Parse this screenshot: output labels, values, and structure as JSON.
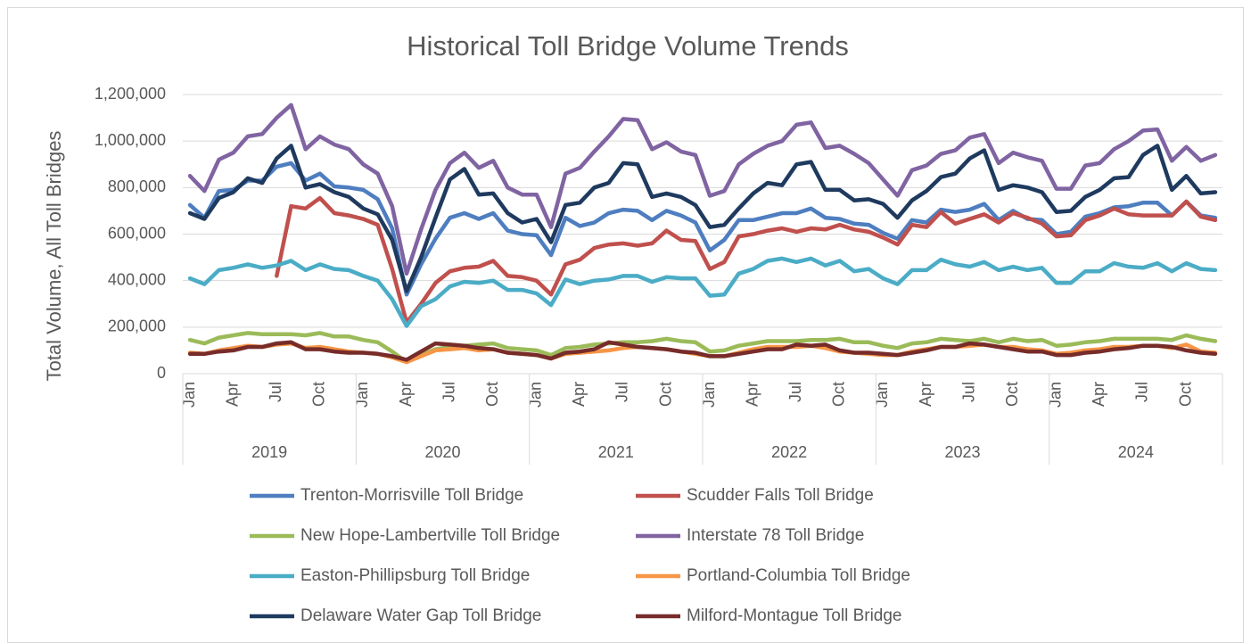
{
  "chart_data": {
    "type": "line",
    "title": "Historical Toll Bridge Volume Trends",
    "y_label": "Total Volume, All Toll Bridges",
    "categories": [
      "Jan",
      null,
      null,
      "Apr",
      null,
      null,
      "Jul",
      null,
      null,
      "Oct",
      null,
      null,
      "Jan",
      null,
      null,
      "Apr",
      null,
      null,
      "Jul",
      null,
      null,
      "Oct",
      null,
      null,
      "Jan",
      null,
      null,
      "Apr",
      null,
      null,
      "Jul",
      null,
      null,
      "Oct",
      null,
      null,
      "Jan",
      null,
      null,
      "Apr",
      null,
      null,
      "Jul",
      null,
      null,
      "Oct",
      null,
      null,
      "Jan",
      null,
      null,
      "Apr",
      null,
      null,
      "Jul",
      null,
      null,
      "Oct",
      null,
      null,
      "Jan",
      null,
      null,
      "Apr",
      null,
      null,
      "Jul",
      null,
      null,
      "Oct",
      null,
      null
    ],
    "years": [
      "2019",
      "2020",
      "2021",
      "2022",
      "2023",
      "2024"
    ],
    "ylim": [
      0,
      1200000
    ],
    "yticks": [
      0,
      {
        "value": 200000,
        "label": "200,000"
      },
      {
        "value": 400000,
        "label": "400,000"
      },
      {
        "value": 600000,
        "label": "600,000"
      },
      {
        "value": 800000,
        "label": "800,000"
      },
      {
        "value": 1000000,
        "label": "1,000,000"
      },
      {
        "value": 1200000,
        "label": "1,200,000"
      }
    ],
    "grid": true,
    "legend": "bottom",
    "series": [
      {
        "name": "Trenton-Morrisville Toll Bridge",
        "color": "#4e7ec0",
        "values": [
          725000,
          670000,
          785000,
          790000,
          830000,
          830000,
          890000,
          905000,
          830000,
          860000,
          805000,
          800000,
          790000,
          750000,
          625000,
          340000,
          470000,
          580000,
          670000,
          690000,
          665000,
          690000,
          615000,
          600000,
          595000,
          510000,
          670000,
          635000,
          650000,
          690000,
          705000,
          700000,
          660000,
          700000,
          680000,
          650000,
          530000,
          575000,
          660000,
          660000,
          675000,
          690000,
          690000,
          710000,
          670000,
          665000,
          645000,
          640000,
          605000,
          580000,
          660000,
          650000,
          705000,
          695000,
          705000,
          730000,
          660000,
          700000,
          665000,
          660000,
          600000,
          610000,
          675000,
          690000,
          715000,
          720000,
          735000,
          735000,
          680000,
          740000,
          680000,
          670000
        ]
      },
      {
        "name": "Scudder Falls Toll Bridge",
        "color": "#c0504d",
        "values": [
          null,
          null,
          null,
          null,
          null,
          null,
          420000,
          720000,
          710000,
          755000,
          690000,
          680000,
          665000,
          640000,
          450000,
          220000,
          300000,
          390000,
          440000,
          455000,
          460000,
          485000,
          420000,
          415000,
          400000,
          340000,
          470000,
          490000,
          540000,
          555000,
          560000,
          550000,
          560000,
          615000,
          575000,
          570000,
          450000,
          480000,
          590000,
          600000,
          615000,
          625000,
          610000,
          625000,
          620000,
          640000,
          620000,
          610000,
          585000,
          555000,
          640000,
          630000,
          695000,
          645000,
          665000,
          685000,
          650000,
          690000,
          670000,
          645000,
          590000,
          595000,
          660000,
          680000,
          710000,
          685000,
          680000,
          680000,
          680000,
          740000,
          675000,
          660000
        ]
      },
      {
        "name": "New Hope-Lambertville Toll Bridge",
        "color": "#9bbb59",
        "values": [
          145000,
          130000,
          155000,
          165000,
          175000,
          170000,
          170000,
          170000,
          165000,
          175000,
          160000,
          160000,
          145000,
          135000,
          95000,
          50000,
          80000,
          105000,
          115000,
          120000,
          125000,
          130000,
          110000,
          105000,
          100000,
          80000,
          110000,
          115000,
          125000,
          130000,
          135000,
          135000,
          140000,
          150000,
          140000,
          135000,
          95000,
          100000,
          120000,
          130000,
          140000,
          140000,
          140000,
          145000,
          145000,
          150000,
          135000,
          135000,
          120000,
          110000,
          130000,
          135000,
          150000,
          145000,
          140000,
          150000,
          135000,
          150000,
          140000,
          145000,
          120000,
          125000,
          135000,
          140000,
          150000,
          150000,
          150000,
          150000,
          145000,
          165000,
          150000,
          140000
        ]
      },
      {
        "name": "Interstate 78 Toll Bridge",
        "color": "#8064a2",
        "values": [
          850000,
          785000,
          920000,
          950000,
          1020000,
          1030000,
          1100000,
          1155000,
          965000,
          1020000,
          985000,
          965000,
          900000,
          860000,
          720000,
          430000,
          620000,
          790000,
          905000,
          950000,
          885000,
          915000,
          800000,
          770000,
          770000,
          630000,
          860000,
          885000,
          955000,
          1020000,
          1095000,
          1090000,
          965000,
          995000,
          955000,
          940000,
          765000,
          785000,
          900000,
          945000,
          980000,
          1000000,
          1070000,
          1080000,
          970000,
          980000,
          945000,
          905000,
          835000,
          765000,
          875000,
          895000,
          945000,
          960000,
          1015000,
          1030000,
          905000,
          950000,
          930000,
          915000,
          795000,
          795000,
          895000,
          905000,
          965000,
          1000000,
          1045000,
          1050000,
          915000,
          975000,
          915000,
          940000
        ]
      },
      {
        "name": "Easton-Phillipsburg Toll Bridge",
        "color": "#4bacc6",
        "values": [
          410000,
          385000,
          445000,
          455000,
          470000,
          455000,
          465000,
          485000,
          445000,
          470000,
          450000,
          445000,
          420000,
          400000,
          320000,
          205000,
          290000,
          320000,
          375000,
          395000,
          390000,
          400000,
          360000,
          360000,
          345000,
          295000,
          405000,
          385000,
          400000,
          405000,
          420000,
          420000,
          395000,
          415000,
          410000,
          410000,
          335000,
          340000,
          430000,
          450000,
          485000,
          495000,
          480000,
          495000,
          465000,
          485000,
          440000,
          450000,
          410000,
          385000,
          445000,
          445000,
          490000,
          470000,
          460000,
          480000,
          445000,
          460000,
          445000,
          455000,
          390000,
          390000,
          440000,
          440000,
          475000,
          460000,
          455000,
          475000,
          440000,
          475000,
          450000,
          445000
        ]
      },
      {
        "name": "Portland-Columbia Toll Bridge",
        "color": "#f79646",
        "values": [
          90000,
          85000,
          100000,
          110000,
          120000,
          115000,
          125000,
          130000,
          110000,
          115000,
          105000,
          95000,
          90000,
          85000,
          70000,
          50000,
          75000,
          100000,
          105000,
          110000,
          100000,
          105000,
          90000,
          85000,
          80000,
          65000,
          85000,
          90000,
          95000,
          100000,
          110000,
          115000,
          110000,
          105000,
          95000,
          85000,
          75000,
          75000,
          90000,
          105000,
          115000,
          115000,
          115000,
          120000,
          110000,
          95000,
          90000,
          85000,
          80000,
          80000,
          95000,
          105000,
          115000,
          115000,
          120000,
          125000,
          115000,
          115000,
          105000,
          100000,
          85000,
          90000,
          100000,
          105000,
          115000,
          115000,
          120000,
          120000,
          110000,
          125000,
          95000,
          90000
        ]
      },
      {
        "name": "Delaware Water Gap Toll Bridge",
        "color": "#1f3a5f",
        "values": [
          690000,
          665000,
          755000,
          780000,
          840000,
          820000,
          925000,
          980000,
          800000,
          815000,
          780000,
          760000,
          710000,
          685000,
          575000,
          355000,
          500000,
          670000,
          835000,
          880000,
          770000,
          775000,
          690000,
          650000,
          665000,
          565000,
          725000,
          735000,
          800000,
          820000,
          905000,
          900000,
          760000,
          775000,
          760000,
          725000,
          630000,
          640000,
          710000,
          775000,
          820000,
          810000,
          900000,
          910000,
          790000,
          790000,
          745000,
          750000,
          730000,
          670000,
          745000,
          785000,
          845000,
          860000,
          925000,
          960000,
          790000,
          810000,
          800000,
          780000,
          695000,
          700000,
          760000,
          790000,
          840000,
          845000,
          940000,
          980000,
          790000,
          850000,
          775000,
          780000
        ]
      },
      {
        "name": "Milford-Montague Toll Bridge",
        "color": "#772c2a",
        "values": [
          85000,
          85000,
          95000,
          100000,
          115000,
          115000,
          130000,
          135000,
          105000,
          105000,
          95000,
          90000,
          90000,
          85000,
          75000,
          60000,
          95000,
          130000,
          125000,
          120000,
          110000,
          105000,
          90000,
          85000,
          80000,
          65000,
          90000,
          95000,
          105000,
          135000,
          125000,
          115000,
          110000,
          105000,
          95000,
          90000,
          75000,
          75000,
          85000,
          95000,
          105000,
          105000,
          125000,
          120000,
          125000,
          100000,
          90000,
          90000,
          85000,
          80000,
          90000,
          100000,
          115000,
          115000,
          130000,
          125000,
          115000,
          105000,
          95000,
          95000,
          80000,
          80000,
          90000,
          95000,
          105000,
          110000,
          120000,
          120000,
          115000,
          100000,
          90000,
          85000
        ]
      }
    ]
  }
}
